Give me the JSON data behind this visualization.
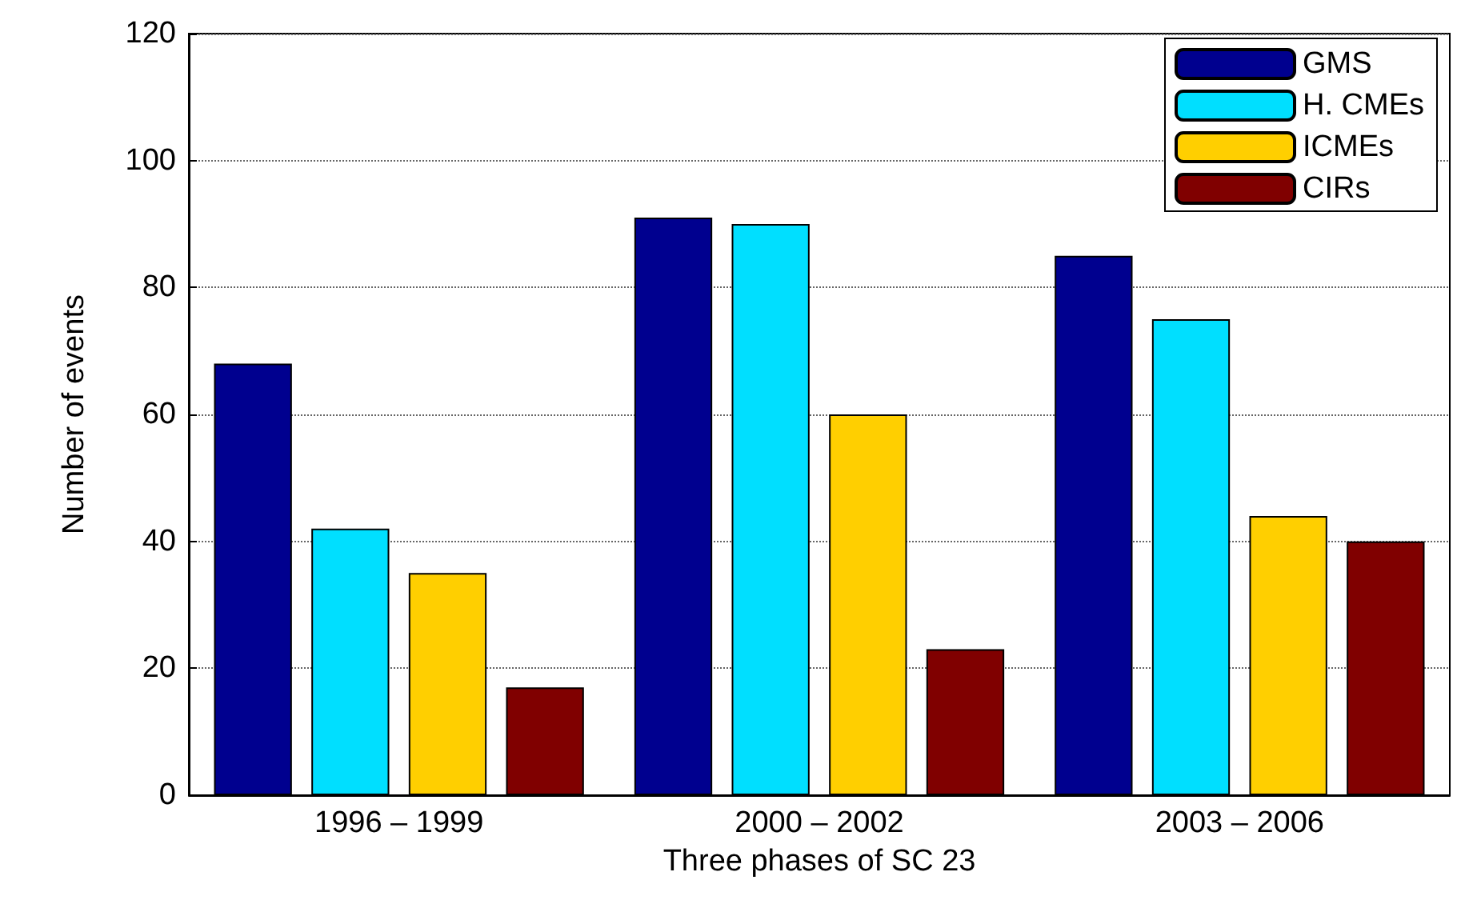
{
  "chart_data": {
    "type": "bar",
    "xlabel": "Three phases of SC 23",
    "ylabel": "Number of events",
    "categories": [
      "1996 – 1999",
      "2000 – 2002",
      "2003 – 2006"
    ],
    "series": [
      {
        "name": "GMS",
        "color": "#00008f",
        "values": [
          68,
          91,
          85
        ]
      },
      {
        "name": "H. CMEs",
        "color": "#00dfff",
        "values": [
          42,
          90,
          75
        ]
      },
      {
        "name": "ICMEs",
        "color": "#ffcf00",
        "values": [
          35,
          60,
          44
        ]
      },
      {
        "name": "CIRs",
        "color": "#800000",
        "values": [
          17,
          23,
          40
        ]
      }
    ],
    "ylim": [
      0,
      120
    ],
    "yticks": [
      0,
      20,
      40,
      60,
      80,
      100,
      120
    ],
    "grid": "y",
    "legend": "top right"
  }
}
